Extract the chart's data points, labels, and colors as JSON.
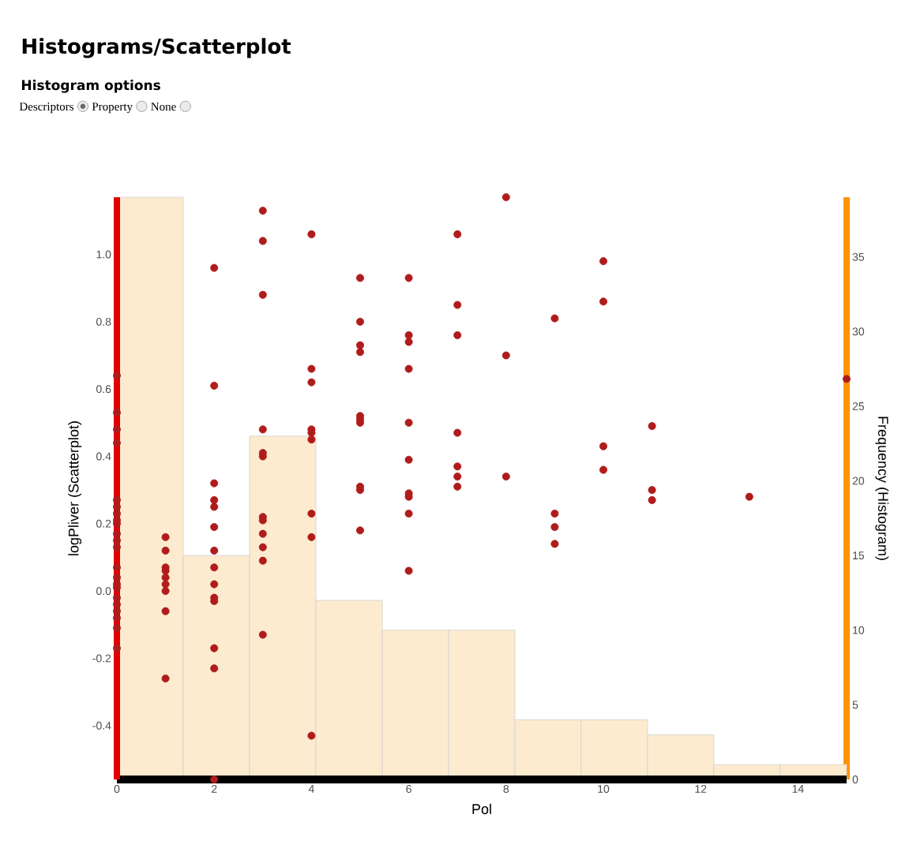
{
  "chart_data": {
    "type": "histogram",
    "title": "Histograms/Scatterplot",
    "subtitle": "Histogram options",
    "annotations": [
      "Descriptors",
      "Property",
      "None"
    ],
    "xlabel": "Pol",
    "ylabel": "logPliver (Scatterplot)",
    "y2label": "Frequency (Histogram)",
    "marker": "circle",
    "xlim": [
      0,
      15
    ],
    "ylim": [
      -0.56,
      1.17
    ],
    "y2lim": [
      0,
      39
    ],
    "xticks": [
      0,
      2,
      4,
      6,
      8,
      10,
      12,
      14
    ],
    "yticks": [
      -0.4,
      -0.2,
      {
        "value": 0,
        "label": "0.0"
      },
      0.2,
      0.4,
      0.6,
      0.8,
      {
        "value": 1,
        "label": "1.0"
      }
    ],
    "y2ticks": [
      0,
      5,
      10,
      15,
      20,
      25,
      30,
      35
    ],
    "series": [
      {
        "type": "histogram",
        "axis": "y2",
        "color": "#fdebcf",
        "bins": [
          0,
          1.364,
          2.727,
          4.091,
          5.455,
          6.818,
          8.182,
          9.545,
          10.909,
          12.273,
          13.636,
          15
        ],
        "values": [
          39,
          15,
          23,
          12,
          10,
          10,
          4,
          4,
          3,
          1,
          1
        ]
      },
      {
        "type": "scatter",
        "axis": "y",
        "color": "#b01c1c",
        "x": [
          0,
          0,
          0,
          0,
          0,
          0,
          0,
          0,
          0,
          0,
          0,
          0,
          0,
          0,
          0,
          0,
          0,
          0,
          0,
          0,
          0,
          0,
          1,
          1,
          1,
          1,
          1,
          1,
          1,
          1,
          1,
          2,
          2,
          2,
          2,
          2,
          2,
          2,
          2,
          2,
          2,
          2,
          2,
          2,
          2,
          3,
          3,
          3,
          3,
          3,
          3,
          3,
          3,
          3,
          3,
          3,
          3,
          4,
          4,
          4,
          4,
          4,
          4,
          4,
          4,
          4,
          5,
          5,
          5,
          5,
          5,
          5,
          5,
          5,
          5,
          5,
          6,
          6,
          6,
          6,
          6,
          6,
          6,
          6,
          6,
          6,
          7,
          7,
          7,
          7,
          7,
          7,
          7,
          8,
          8,
          8,
          9,
          9,
          9,
          9,
          10,
          10,
          10,
          10,
          11,
          11,
          11,
          13,
          15
        ],
        "values": [
          0.64,
          0.53,
          0.48,
          0.44,
          0.27,
          0.25,
          0.23,
          0.21,
          0.2,
          0.17,
          0.15,
          0.13,
          0.07,
          0.04,
          0.02,
          0.01,
          -0.02,
          -0.04,
          -0.06,
          -0.08,
          -0.11,
          -0.17,
          0.16,
          0.12,
          0.07,
          0.06,
          0.04,
          0.02,
          0.0,
          -0.06,
          -0.26,
          0.96,
          0.61,
          0.32,
          0.27,
          0.25,
          0.19,
          0.12,
          0.07,
          0.02,
          -0.02,
          -0.03,
          -0.17,
          -0.23,
          -0.56,
          1.13,
          1.04,
          0.88,
          0.48,
          0.41,
          0.4,
          0.22,
          0.21,
          0.17,
          0.13,
          0.09,
          -0.13,
          1.06,
          0.66,
          0.62,
          0.48,
          0.47,
          0.45,
          0.23,
          0.16,
          -0.43,
          0.93,
          0.8,
          0.73,
          0.71,
          0.52,
          0.51,
          0.5,
          0.31,
          0.3,
          0.18,
          0.93,
          0.76,
          0.74,
          0.66,
          0.5,
          0.39,
          0.29,
          0.28,
          0.23,
          0.06,
          1.06,
          0.85,
          0.76,
          0.47,
          0.37,
          0.34,
          0.31,
          1.17,
          0.7,
          0.34,
          0.81,
          0.23,
          0.19,
          0.14,
          0.98,
          0.86,
          0.43,
          0.36,
          0.49,
          0.3,
          0.27,
          0.28,
          0.63
        ]
      }
    ]
  }
}
